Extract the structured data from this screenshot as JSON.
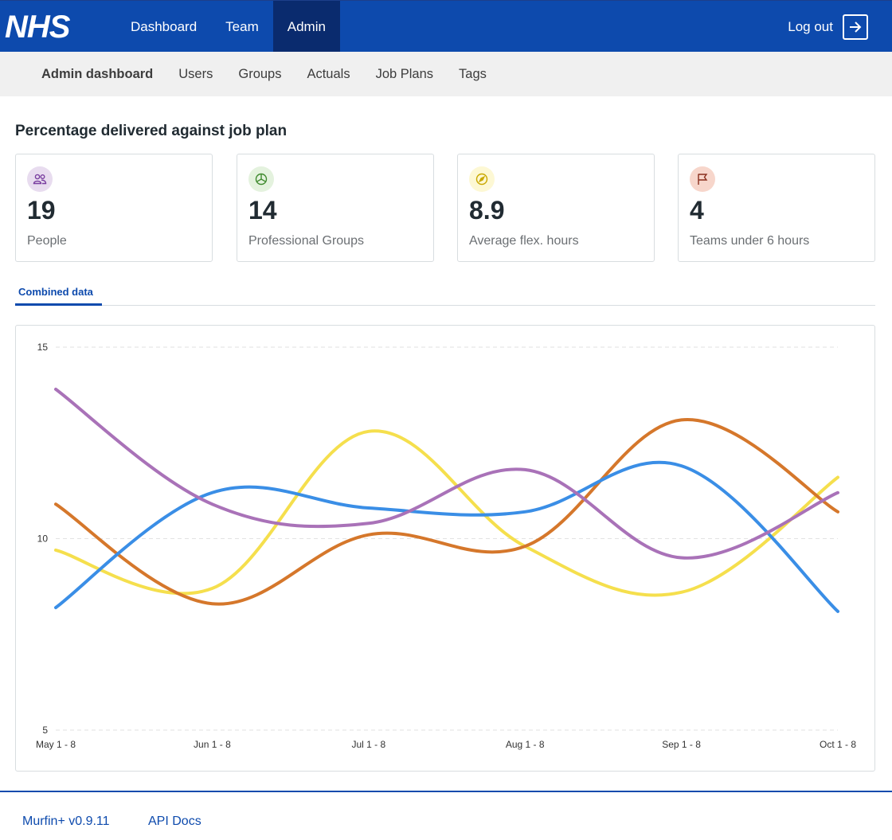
{
  "header": {
    "logo_text": "NHS",
    "nav": [
      {
        "label": "Dashboard",
        "active": false
      },
      {
        "label": "Team",
        "active": false
      },
      {
        "label": "Admin",
        "active": true
      }
    ],
    "logout_label": "Log out"
  },
  "subnav": {
    "items": [
      "Admin dashboard",
      "Users",
      "Groups",
      "Actuals",
      "Job Plans",
      "Tags"
    ],
    "current": "Admin dashboard"
  },
  "main": {
    "title": "Percentage delivered against job plan",
    "stats": [
      {
        "value": "19",
        "label": "People",
        "icon": "people-icon",
        "icon_bg": "#e8dcef",
        "icon_color": "#7a3fa0"
      },
      {
        "value": "14",
        "label": "Professional Groups",
        "icon": "pie-chart-icon",
        "icon_bg": "#e4f2de",
        "icon_color": "#3f8a2e"
      },
      {
        "value": "8.9",
        "label": "Average flex. hours",
        "icon": "compass-icon",
        "icon_bg": "#fdf8d4",
        "icon_color": "#c9a800"
      },
      {
        "value": "4",
        "label": "Teams under 6 hours",
        "icon": "flag-icon",
        "icon_bg": "#f7d6cb",
        "icon_color": "#8a2e1d"
      }
    ],
    "tabs": [
      {
        "label": "Combined data",
        "active": true
      }
    ]
  },
  "chart_data": {
    "type": "line",
    "title": "",
    "xlabel": "",
    "ylabel": "",
    "categories": [
      "May 1 - 8",
      "Jun 1 - 8",
      "Jul 1 - 8",
      "Aug 1 - 8",
      "Sep 1 - 8",
      "Oct 1 - 8"
    ],
    "ylim": [
      5,
      15
    ],
    "yticks": [
      5,
      10,
      15
    ],
    "grid": true,
    "legend": "none",
    "series": [
      {
        "color": "#f5df4d",
        "values": [
          9.7,
          8.7,
          12.8,
          9.8,
          8.6,
          11.6
        ]
      },
      {
        "color": "#d5772b",
        "values": [
          10.9,
          8.3,
          10.1,
          9.8,
          13.1,
          10.7
        ]
      },
      {
        "color": "#3a8ee6",
        "values": [
          8.2,
          11.2,
          10.8,
          10.7,
          11.9,
          8.1
        ]
      },
      {
        "color": "#a972b8",
        "values": [
          13.9,
          10.9,
          10.4,
          11.8,
          9.5,
          11.2
        ]
      }
    ]
  },
  "footer": {
    "links": [
      "Murfin+ v0.9.11",
      "API Docs"
    ]
  }
}
